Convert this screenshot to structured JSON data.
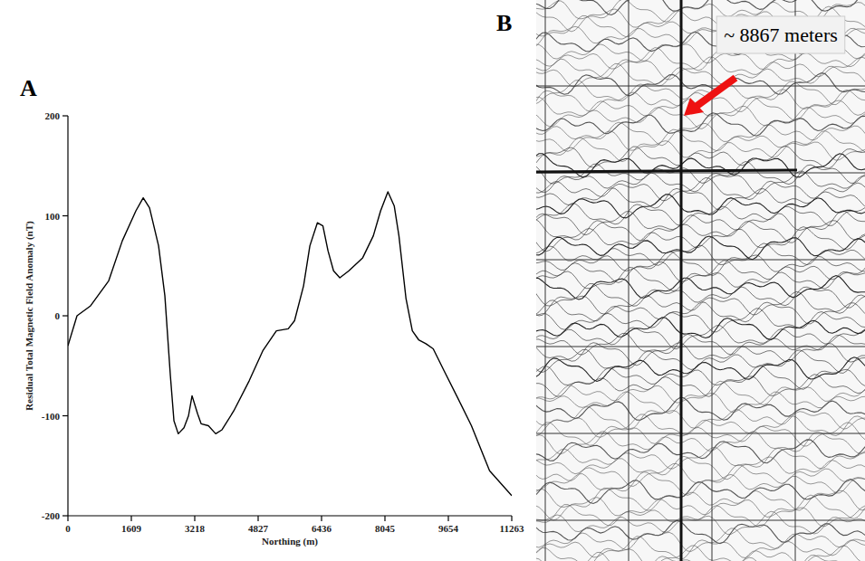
{
  "chart_data": [
    {
      "type": "line",
      "panel_label": "A",
      "x_label": "Northing (m)",
      "y_label": "Residual Total Magnetic Field Anomaly (nT)",
      "color": "#000000",
      "x": [
        0,
        230,
        575,
        1035,
        1380,
        1725,
        1910,
        2070,
        2300,
        2460,
        2600,
        2690,
        2800,
        2945,
        3060,
        3150,
        3290,
        3380,
        3565,
        3750,
        3910,
        4210,
        4600,
        4945,
        5290,
        5590,
        5750,
        5980,
        6140,
        6330,
        6470,
        6600,
        6740,
        6900,
        7130,
        7480,
        7750,
        7935,
        8120,
        8280,
        8400,
        8580,
        8740,
        8900,
        9085,
        9270,
        9545,
        9890,
        10240,
        10700,
        11263
      ],
      "values": [
        -30,
        0,
        10,
        35,
        75,
        105,
        118,
        108,
        70,
        20,
        -60,
        -105,
        -118,
        -112,
        -100,
        -80,
        -98,
        -108,
        -110,
        -118,
        -114,
        -95,
        -65,
        -35,
        -15,
        -13,
        -5,
        30,
        70,
        93,
        90,
        65,
        45,
        38,
        45,
        58,
        80,
        105,
        124,
        110,
        80,
        17,
        -15,
        -24,
        -28,
        -33,
        -55,
        -82,
        -110,
        -155,
        -180
      ],
      "xlim": [
        0,
        11263
      ],
      "xticks": [
        0,
        1609,
        3218,
        4827,
        6436,
        8045,
        9654,
        11263
      ],
      "ylim": [
        -200,
        200
      ],
      "yticks": [
        -200,
        -100,
        0,
        100,
        200
      ],
      "grid": false
    },
    {
      "type": "map",
      "panel_label": "B",
      "annotation": "~ 8867 meters"
    }
  ]
}
